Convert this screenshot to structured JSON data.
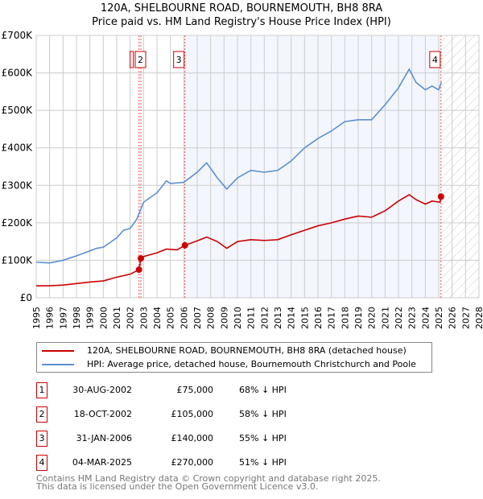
{
  "chart_data": {
    "type": "line",
    "title": "120A, SHELBOURNE ROAD, BOURNEMOUTH, BH8 8RA",
    "subtitle": "Price paid vs. HM Land Registry's House Price Index (HPI)",
    "xlim": [
      1995,
      2028
    ],
    "ylim": [
      0,
      700000
    ],
    "x_ticks": [
      1995,
      1996,
      1997,
      1998,
      1999,
      2000,
      2001,
      2002,
      2003,
      2004,
      2005,
      2006,
      2007,
      2008,
      2009,
      2010,
      2011,
      2012,
      2013,
      2014,
      2015,
      2016,
      2017,
      2018,
      2019,
      2020,
      2021,
      2022,
      2023,
      2024,
      2025,
      2026,
      2027,
      2028
    ],
    "y_ticks": [
      {
        "v": 0,
        "label": "£0"
      },
      {
        "v": 100000,
        "label": "£100K"
      },
      {
        "v": 200000,
        "label": "£200K"
      },
      {
        "v": 300000,
        "label": "£300K"
      },
      {
        "v": 400000,
        "label": "£400K"
      },
      {
        "v": 500000,
        "label": "£500K"
      },
      {
        "v": 600000,
        "label": "£600K"
      },
      {
        "v": 700000,
        "label": "£700K"
      }
    ],
    "grid": true,
    "shaded_range": [
      2006.08,
      2025.17
    ],
    "hatched_range": [
      2025.25,
      2028
    ],
    "series": [
      {
        "name": "120A, SHELBOURNE ROAD, BOURNEMOUTH, BH8 8RA (detached house)",
        "color": "#cc0000",
        "x": [
          1995,
          1996,
          1997,
          1998,
          1999,
          2000,
          2001,
          2002,
          2002.66,
          2002.8,
          2003,
          2004,
          2004.7,
          2005.5,
          2006.08,
          2007,
          2007.7,
          2008.5,
          2009.2,
          2010,
          2011,
          2012,
          2013,
          2014,
          2015,
          2016,
          2017,
          2018,
          2019,
          2020,
          2021,
          2022,
          2022.8,
          2023.3,
          2024,
          2024.5,
          2025.1,
          2025.17
        ],
        "y": [
          32000,
          32000,
          34000,
          38000,
          42000,
          45000,
          55000,
          63000,
          75000,
          105000,
          110000,
          120000,
          130000,
          128000,
          140000,
          152000,
          162000,
          150000,
          132000,
          150000,
          155000,
          153000,
          155000,
          168000,
          180000,
          192000,
          200000,
          210000,
          218000,
          215000,
          232000,
          258000,
          275000,
          262000,
          250000,
          258000,
          255000,
          270000
        ]
      },
      {
        "name": "HPI: Average price, detached house, Bournemouth Christchurch and Poole",
        "color": "#5b8fd0",
        "x": [
          1995,
          1996,
          1997,
          1998,
          1999,
          1999.5,
          2000,
          2001,
          2001.5,
          2002,
          2002.5,
          2003,
          2004,
          2004.7,
          2005,
          2006,
          2007,
          2007.7,
          2008.5,
          2009.2,
          2010,
          2011,
          2012,
          2013,
          2014,
          2015,
          2016,
          2017,
          2018,
          2019,
          2020,
          2021,
          2022,
          2022.8,
          2023.3,
          2024,
          2024.5,
          2025,
          2025.2
        ],
        "y": [
          95000,
          93000,
          100000,
          112000,
          125000,
          132000,
          135000,
          160000,
          180000,
          185000,
          210000,
          255000,
          280000,
          312000,
          305000,
          308000,
          335000,
          360000,
          320000,
          290000,
          320000,
          340000,
          335000,
          340000,
          365000,
          400000,
          425000,
          445000,
          470000,
          475000,
          475000,
          515000,
          560000,
          610000,
          575000,
          555000,
          565000,
          555000,
          575000
        ]
      }
    ],
    "sales": [
      {
        "n": "1",
        "x": 2002.66,
        "y": 75000,
        "date": "30-AUG-2002",
        "price": "£75,000",
        "pct": "68% ↓ HPI"
      },
      {
        "n": "2",
        "x": 2002.8,
        "y": 105000,
        "date": "18-OCT-2002",
        "price": "£105,000",
        "pct": "58% ↓ HPI"
      },
      {
        "n": "3",
        "x": 2006.08,
        "y": 140000,
        "date": "31-JAN-2006",
        "price": "£140,000",
        "pct": "55% ↓ HPI"
      },
      {
        "n": "4",
        "x": 2025.17,
        "y": 270000,
        "date": "04-MAR-2025",
        "price": "£270,000",
        "pct": "51% ↓ HPI"
      }
    ]
  },
  "footer": {
    "line1": "Contains HM Land Registry data © Crown copyright and database right 2025.",
    "line2": "This data is licensed under the Open Government Licence v3.0."
  }
}
